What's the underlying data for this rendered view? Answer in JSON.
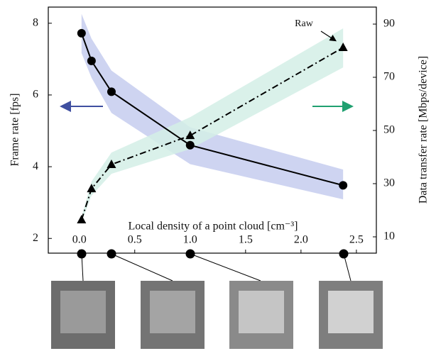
{
  "chart_data": {
    "type": "line",
    "x_label": "Local density of a point cloud [cm⁻³]",
    "y_label": "Frame rate [fps]",
    "y2_label": "Data transfer rate [Mbps/device]",
    "annotation": "Raw",
    "xlim": [
      -0.28,
      2.68
    ],
    "xticks": [
      {
        "value": 0,
        "label": "0.0"
      },
      0.5,
      {
        "value": 1,
        "label": "1.0"
      },
      1.5,
      {
        "value": 2,
        "label": "2.0"
      },
      2.5
    ],
    "ylim": [
      1.59,
      8.45
    ],
    "yticks": [
      2,
      4,
      6,
      8
    ],
    "y2lim": [
      3.87,
      96.4
    ],
    "y2ticks": [
      10,
      30,
      50,
      70,
      90
    ],
    "series": [
      {
        "color": "#000000",
        "band_color": "#c5cdee",
        "marker": "circle",
        "axis": "y",
        "x": [
          0.02,
          0.11,
          0.29,
          1.0,
          2.38
        ],
        "values": [
          7.72,
          6.95,
          6.09,
          4.6,
          3.48
        ],
        "band_lower": [
          7.17,
          6.48,
          5.5,
          4.07,
          3.09
        ],
        "band_upper": [
          8.26,
          7.57,
          6.68,
          5.1,
          3.92
        ]
      },
      {
        "color": "#000000",
        "band_color": "#d4efe6",
        "marker": "triangle",
        "axis": "y2",
        "x": [
          0.02,
          0.11,
          0.29,
          1.0,
          2.38
        ],
        "values": [
          16.4,
          28.1,
          37.2,
          48.1,
          81.2
        ],
        "band_lower": [
          15.5,
          25.5,
          33.7,
          43,
          73.7
        ],
        "band_upper": [
          17.5,
          30.8,
          41.7,
          55,
          88.4
        ]
      }
    ]
  }
}
